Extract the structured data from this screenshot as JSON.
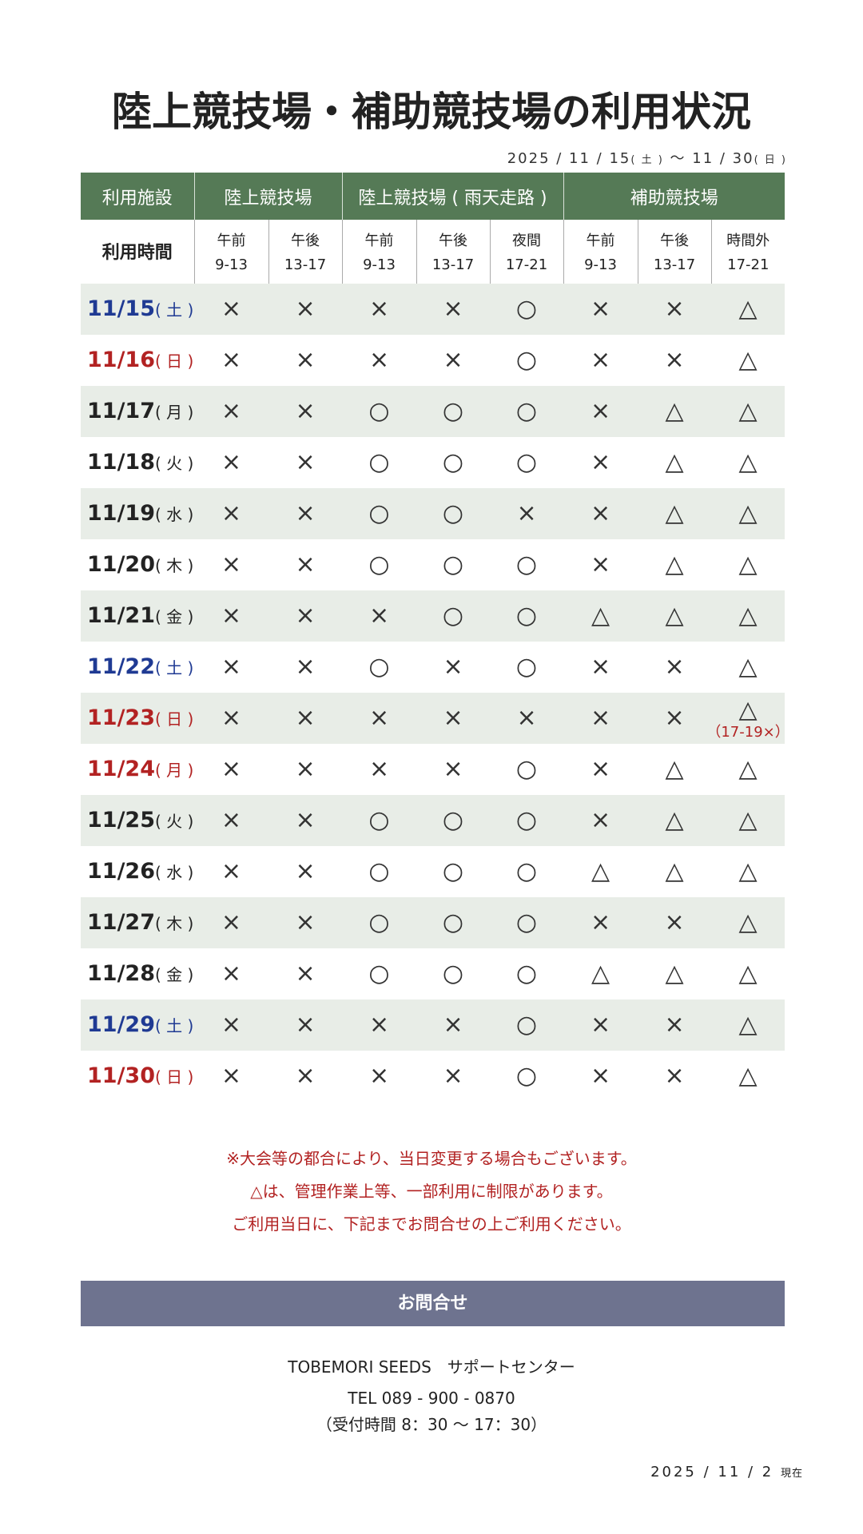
{
  "title": "陸上競技場・補助競技場の利用状況",
  "period": {
    "start": "2025 / 11 / 15",
    "start_day": "( 土 )",
    "sep": " 〜 ",
    "end": "11 / 30",
    "end_day": "( 日 )"
  },
  "header": {
    "facility_label": "利用施設",
    "groups": [
      "陸上競技場",
      "陸上競技場 ( 雨天走路 )",
      "補助競技場"
    ],
    "time_label": "利用時間",
    "slots": [
      [
        "午前",
        "9-13"
      ],
      [
        "午後",
        "13-17"
      ],
      [
        "午前",
        "9-13"
      ],
      [
        "午後",
        "13-17"
      ],
      [
        "夜間",
        "17-21"
      ],
      [
        "午前",
        "9-13"
      ],
      [
        "午後",
        "13-17"
      ],
      [
        "時間外",
        "17-21"
      ]
    ]
  },
  "colors": {
    "header_green": "#557a56",
    "shade": "#e8ede7",
    "saturday": "#1f3a93",
    "holiday": "#b22222",
    "contact_bar": "#6e738f"
  },
  "rows": [
    {
      "date": "11/15",
      "day": "( 土 )",
      "type": "sat",
      "v": [
        "×",
        "×",
        "×",
        "×",
        "○",
        "×",
        "×",
        "△"
      ]
    },
    {
      "date": "11/16",
      "day": "( 日 )",
      "type": "hol",
      "v": [
        "×",
        "×",
        "×",
        "×",
        "○",
        "×",
        "×",
        "△"
      ]
    },
    {
      "date": "11/17",
      "day": "( 月 )",
      "type": "",
      "v": [
        "×",
        "×",
        "○",
        "○",
        "○",
        "×",
        "△",
        "△"
      ]
    },
    {
      "date": "11/18",
      "day": "( 火 )",
      "type": "",
      "v": [
        "×",
        "×",
        "○",
        "○",
        "○",
        "×",
        "△",
        "△"
      ]
    },
    {
      "date": "11/19",
      "day": "( 水 )",
      "type": "",
      "v": [
        "×",
        "×",
        "○",
        "○",
        "×",
        "×",
        "△",
        "△"
      ]
    },
    {
      "date": "11/20",
      "day": "( 木 )",
      "type": "",
      "v": [
        "×",
        "×",
        "○",
        "○",
        "○",
        "×",
        "△",
        "△"
      ]
    },
    {
      "date": "11/21",
      "day": "( 金 )",
      "type": "",
      "v": [
        "×",
        "×",
        "×",
        "○",
        "○",
        "△",
        "△",
        "△"
      ]
    },
    {
      "date": "11/22",
      "day": "( 土 )",
      "type": "sat",
      "v": [
        "×",
        "×",
        "○",
        "×",
        "○",
        "×",
        "×",
        "△"
      ]
    },
    {
      "date": "11/23",
      "day": "( 日 )",
      "type": "hol",
      "v": [
        "×",
        "×",
        "×",
        "×",
        "×",
        "×",
        "×",
        "△"
      ],
      "note": "（17-19×）"
    },
    {
      "date": "11/24",
      "day": "( 月 )",
      "type": "hol",
      "v": [
        "×",
        "×",
        "×",
        "×",
        "○",
        "×",
        "△",
        "△"
      ]
    },
    {
      "date": "11/25",
      "day": "( 火 )",
      "type": "",
      "v": [
        "×",
        "×",
        "○",
        "○",
        "○",
        "×",
        "△",
        "△"
      ]
    },
    {
      "date": "11/26",
      "day": "( 水 )",
      "type": "",
      "v": [
        "×",
        "×",
        "○",
        "○",
        "○",
        "△",
        "△",
        "△"
      ]
    },
    {
      "date": "11/27",
      "day": "( 木 )",
      "type": "",
      "v": [
        "×",
        "×",
        "○",
        "○",
        "○",
        "×",
        "×",
        "△"
      ]
    },
    {
      "date": "11/28",
      "day": "( 金 )",
      "type": "",
      "v": [
        "×",
        "×",
        "○",
        "○",
        "○",
        "△",
        "△",
        "△"
      ]
    },
    {
      "date": "11/29",
      "day": "( 土 )",
      "type": "sat",
      "v": [
        "×",
        "×",
        "×",
        "×",
        "○",
        "×",
        "×",
        "△"
      ]
    },
    {
      "date": "11/30",
      "day": "( 日 )",
      "type": "hol",
      "v": [
        "×",
        "×",
        "×",
        "×",
        "○",
        "×",
        "×",
        "△"
      ]
    }
  ],
  "notes": [
    "※大会等の都合により、当日変更する場合もございます。",
    "△は、管理作業上等、一部利用に制限があります。",
    "ご利用当日に、下記までお問合せの上ご利用ください。"
  ],
  "contact": {
    "label": "お問合せ",
    "org": "TOBEMORI SEEDS　サポートセンター",
    "tel": "TEL 089 - 900 - 0870",
    "hours": "（受付時間 8：30 〜 17：30）"
  },
  "as_of": {
    "date": "2025 / 11 /  2",
    "suffix": "現在"
  }
}
